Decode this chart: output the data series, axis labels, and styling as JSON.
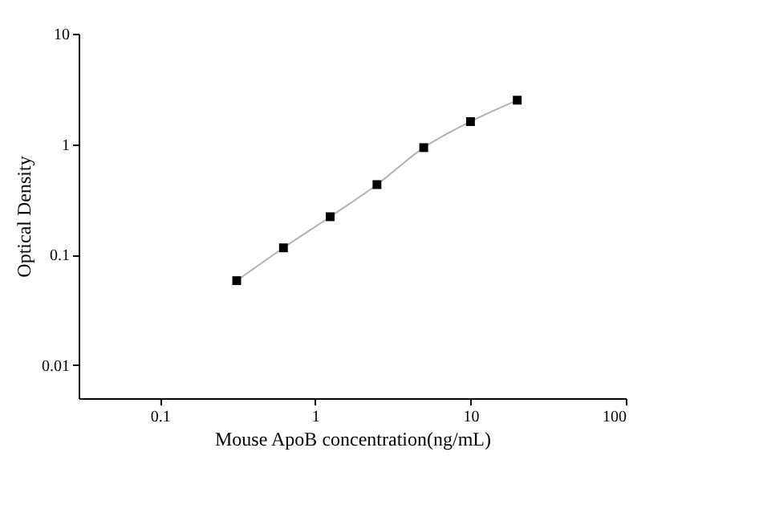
{
  "chart_data": {
    "type": "scatter",
    "xlabel": "Mouse ApoB concentration(ng/mL)",
    "ylabel": "Optical Density",
    "log": "xy",
    "xlim": [
      0.03,
      100
    ],
    "xticks": [
      0.1,
      1,
      10,
      100
    ],
    "ylim": [
      0.005,
      10
    ],
    "yticks": [
      0.01,
      0.1,
      1,
      10
    ],
    "grid": false,
    "x": [
      0.3125,
      0.625,
      1.25,
      2.5,
      5,
      10,
      20
    ],
    "series": [
      {
        "color": "#000000",
        "marker": "square",
        "values": [
          0.058,
          0.115,
          0.22,
          0.43,
          0.93,
          1.6,
          2.5
        ]
      },
      {
        "type": "line",
        "color": "#b0b0b0",
        "marker": "none",
        "line_style": "solid",
        "values": [
          0.058,
          0.115,
          0.22,
          0.43,
          0.93,
          1.6,
          2.5
        ]
      }
    ]
  }
}
